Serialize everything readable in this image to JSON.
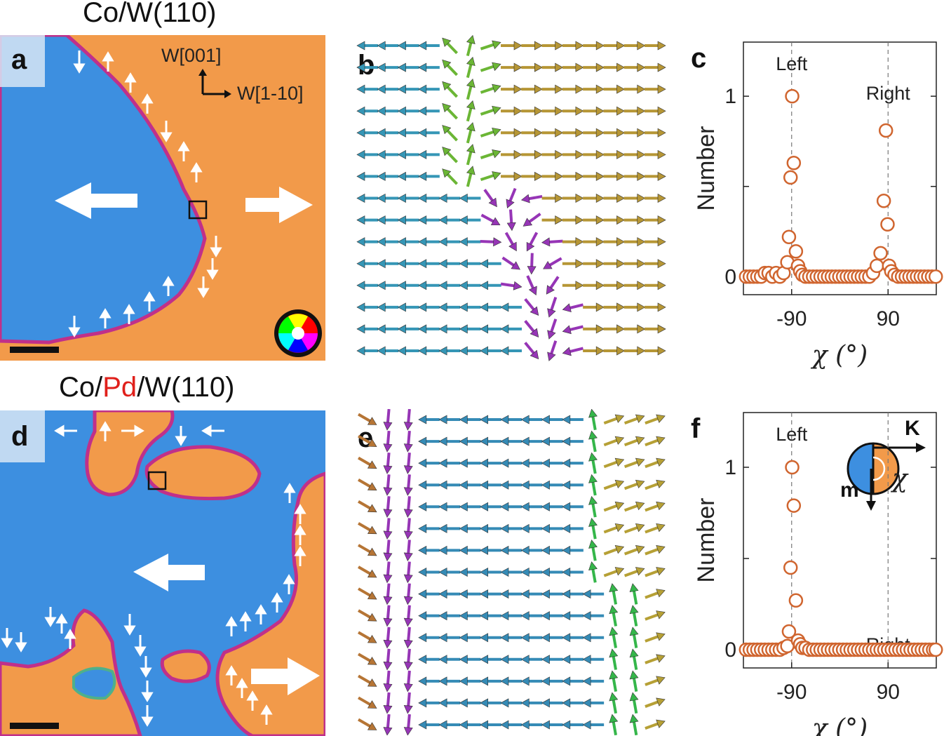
{
  "row_top": {
    "title_parts": [
      "Co/W(110)"
    ],
    "panels": {
      "a": {
        "label": "a",
        "axis_labels": [
          "W[001]",
          "W[1-10]"
        ]
      },
      "b": {
        "label": "b"
      },
      "c": {
        "label": "c"
      }
    }
  },
  "row_bottom": {
    "title_parts": [
      "Co/",
      "Pd",
      "/W(110)"
    ],
    "panels": {
      "d": {
        "label": "d"
      },
      "e": {
        "label": "e"
      },
      "f": {
        "label": "f",
        "inset_labels": [
          "K",
          "m",
          "χ"
        ]
      }
    }
  },
  "colors": {
    "domain_blue": "#3d8fe0",
    "domain_orange": "#f29a4a",
    "wall_magenta": "#c0308a",
    "marker": "#d0652f",
    "title_highlight": "#e0201b"
  },
  "chart_data": [
    {
      "id": "c",
      "type": "scatter",
      "xlabel": "χ (°)",
      "ylabel": "Number",
      "xticks": [
        "-90",
        "90"
      ],
      "yticks": [
        "0",
        "1"
      ],
      "xlim": [
        -180,
        180
      ],
      "ylim": [
        -0.1,
        1.3
      ],
      "annotations": [
        "Left",
        "Right"
      ],
      "x": [
        -175,
        -168,
        -161,
        -154,
        -147,
        -140,
        -133,
        -126,
        -119,
        -112,
        -105,
        -98,
        -95,
        -92,
        -89,
        -86,
        -82,
        -78,
        -74,
        -70,
        -64,
        -57,
        -50,
        -43,
        -36,
        -29,
        -22,
        -15,
        -8,
        -1,
        6,
        13,
        20,
        27,
        34,
        41,
        48,
        55,
        62,
        69,
        76,
        82,
        86,
        89,
        92,
        96,
        102,
        109,
        116,
        123,
        130,
        137,
        144,
        151,
        158,
        165,
        172,
        179
      ],
      "y": [
        0,
        0,
        0,
        0,
        0,
        0.02,
        0.02,
        0,
        0.02,
        0,
        0.02,
        0.08,
        0.22,
        0.55,
        1.0,
        0.63,
        0.14,
        0.06,
        0.03,
        0.01,
        0,
        0,
        0,
        0,
        0,
        0,
        0,
        0,
        0,
        0,
        0,
        0,
        0,
        0,
        0,
        0,
        0,
        0,
        0.02,
        0.06,
        0.13,
        0.42,
        0.81,
        0.29,
        0.06,
        0.03,
        0.01,
        0,
        0,
        0,
        0,
        0,
        0,
        0,
        0,
        0,
        0,
        0
      ]
    },
    {
      "id": "f",
      "type": "scatter",
      "xlabel": "χ (°)",
      "ylabel": "Number",
      "xticks": [
        "-90",
        "90"
      ],
      "yticks": [
        "0",
        "1"
      ],
      "xlim": [
        -180,
        180
      ],
      "ylim": [
        -0.1,
        1.3
      ],
      "annotations": [
        "Left",
        "Right"
      ],
      "x": [
        -175,
        -168,
        -161,
        -154,
        -147,
        -140,
        -133,
        -126,
        -119,
        -112,
        -105,
        -98,
        -95,
        -92,
        -89,
        -86,
        -82,
        -78,
        -74,
        -70,
        -64,
        -57,
        -50,
        -43,
        -36,
        -29,
        -22,
        -15,
        -8,
        -1,
        6,
        13,
        20,
        27,
        34,
        41,
        48,
        55,
        62,
        69,
        76,
        83,
        90,
        97,
        104,
        111,
        118,
        125,
        132,
        139,
        146,
        153,
        160,
        167,
        174,
        179
      ],
      "y": [
        0,
        0,
        0,
        0,
        0,
        0,
        0,
        0,
        0,
        0,
        0.01,
        0.02,
        0.1,
        0.45,
        1.0,
        0.79,
        0.27,
        0.05,
        0.03,
        0.01,
        0.01,
        0,
        0,
        0,
        0,
        0,
        0,
        0,
        0,
        0,
        0,
        0,
        0,
        0,
        0,
        0,
        0,
        0,
        0,
        0,
        0,
        0,
        0,
        0,
        0,
        0,
        0,
        0,
        0,
        0,
        0,
        0,
        0,
        0,
        0,
        0
      ]
    }
  ]
}
